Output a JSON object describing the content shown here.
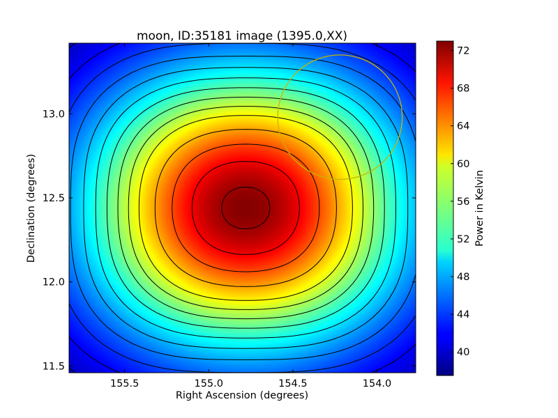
{
  "chart_data": {
    "type": "heatmap",
    "title": "moon, ID:35181 image (1395.0,XX)",
    "xlabel": "Right Ascension (degrees)",
    "ylabel": "Declination (degrees)",
    "colorbar_label": "Power in Kelvin",
    "xlim": [
      155.83,
      153.77
    ],
    "ylim": [
      11.46,
      13.42
    ],
    "x_ticks": [
      155.5,
      155.0,
      154.5,
      154.0
    ],
    "x_tick_labels": [
      "155.5",
      "155.0",
      "154.5",
      "154.0"
    ],
    "y_ticks": [
      11.5,
      12.0,
      12.5,
      13.0
    ],
    "y_tick_labels": [
      "11.5",
      "12.0",
      "12.5",
      "13.0"
    ],
    "colorbar_range": [
      37.5,
      73.0
    ],
    "colorbar_ticks": [
      40,
      44,
      48,
      52,
      56,
      60,
      64,
      68,
      72
    ],
    "colorbar_tick_labels": [
      "40",
      "44",
      "48",
      "52",
      "56",
      "60",
      "64",
      "68",
      "72"
    ],
    "colormap": "jet",
    "peak": {
      "ra": 154.78,
      "dec": 12.44,
      "value": 72.8
    },
    "field_minimum": 37.5,
    "contour_levels": [
      40,
      42,
      44,
      46,
      48,
      50,
      52,
      54,
      56,
      58,
      60,
      63,
      66,
      69,
      72
    ],
    "beam_circle": {
      "ra": 154.22,
      "dec": 12.98,
      "radius_deg": 0.37,
      "color": "#c8b400"
    },
    "contour_color": "#000000"
  }
}
